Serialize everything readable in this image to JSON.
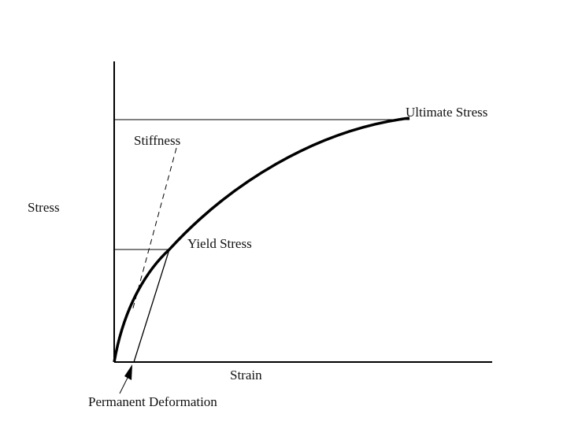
{
  "diagram": {
    "y_axis_label": "Stress",
    "x_axis_label": "Strain",
    "labels": {
      "ultimate_stress": "Ultimate Stress",
      "stiffness": "Stiffness",
      "yield_stress": "Yield Stress",
      "permanent_deformation": "Permanent Deformation"
    }
  }
}
